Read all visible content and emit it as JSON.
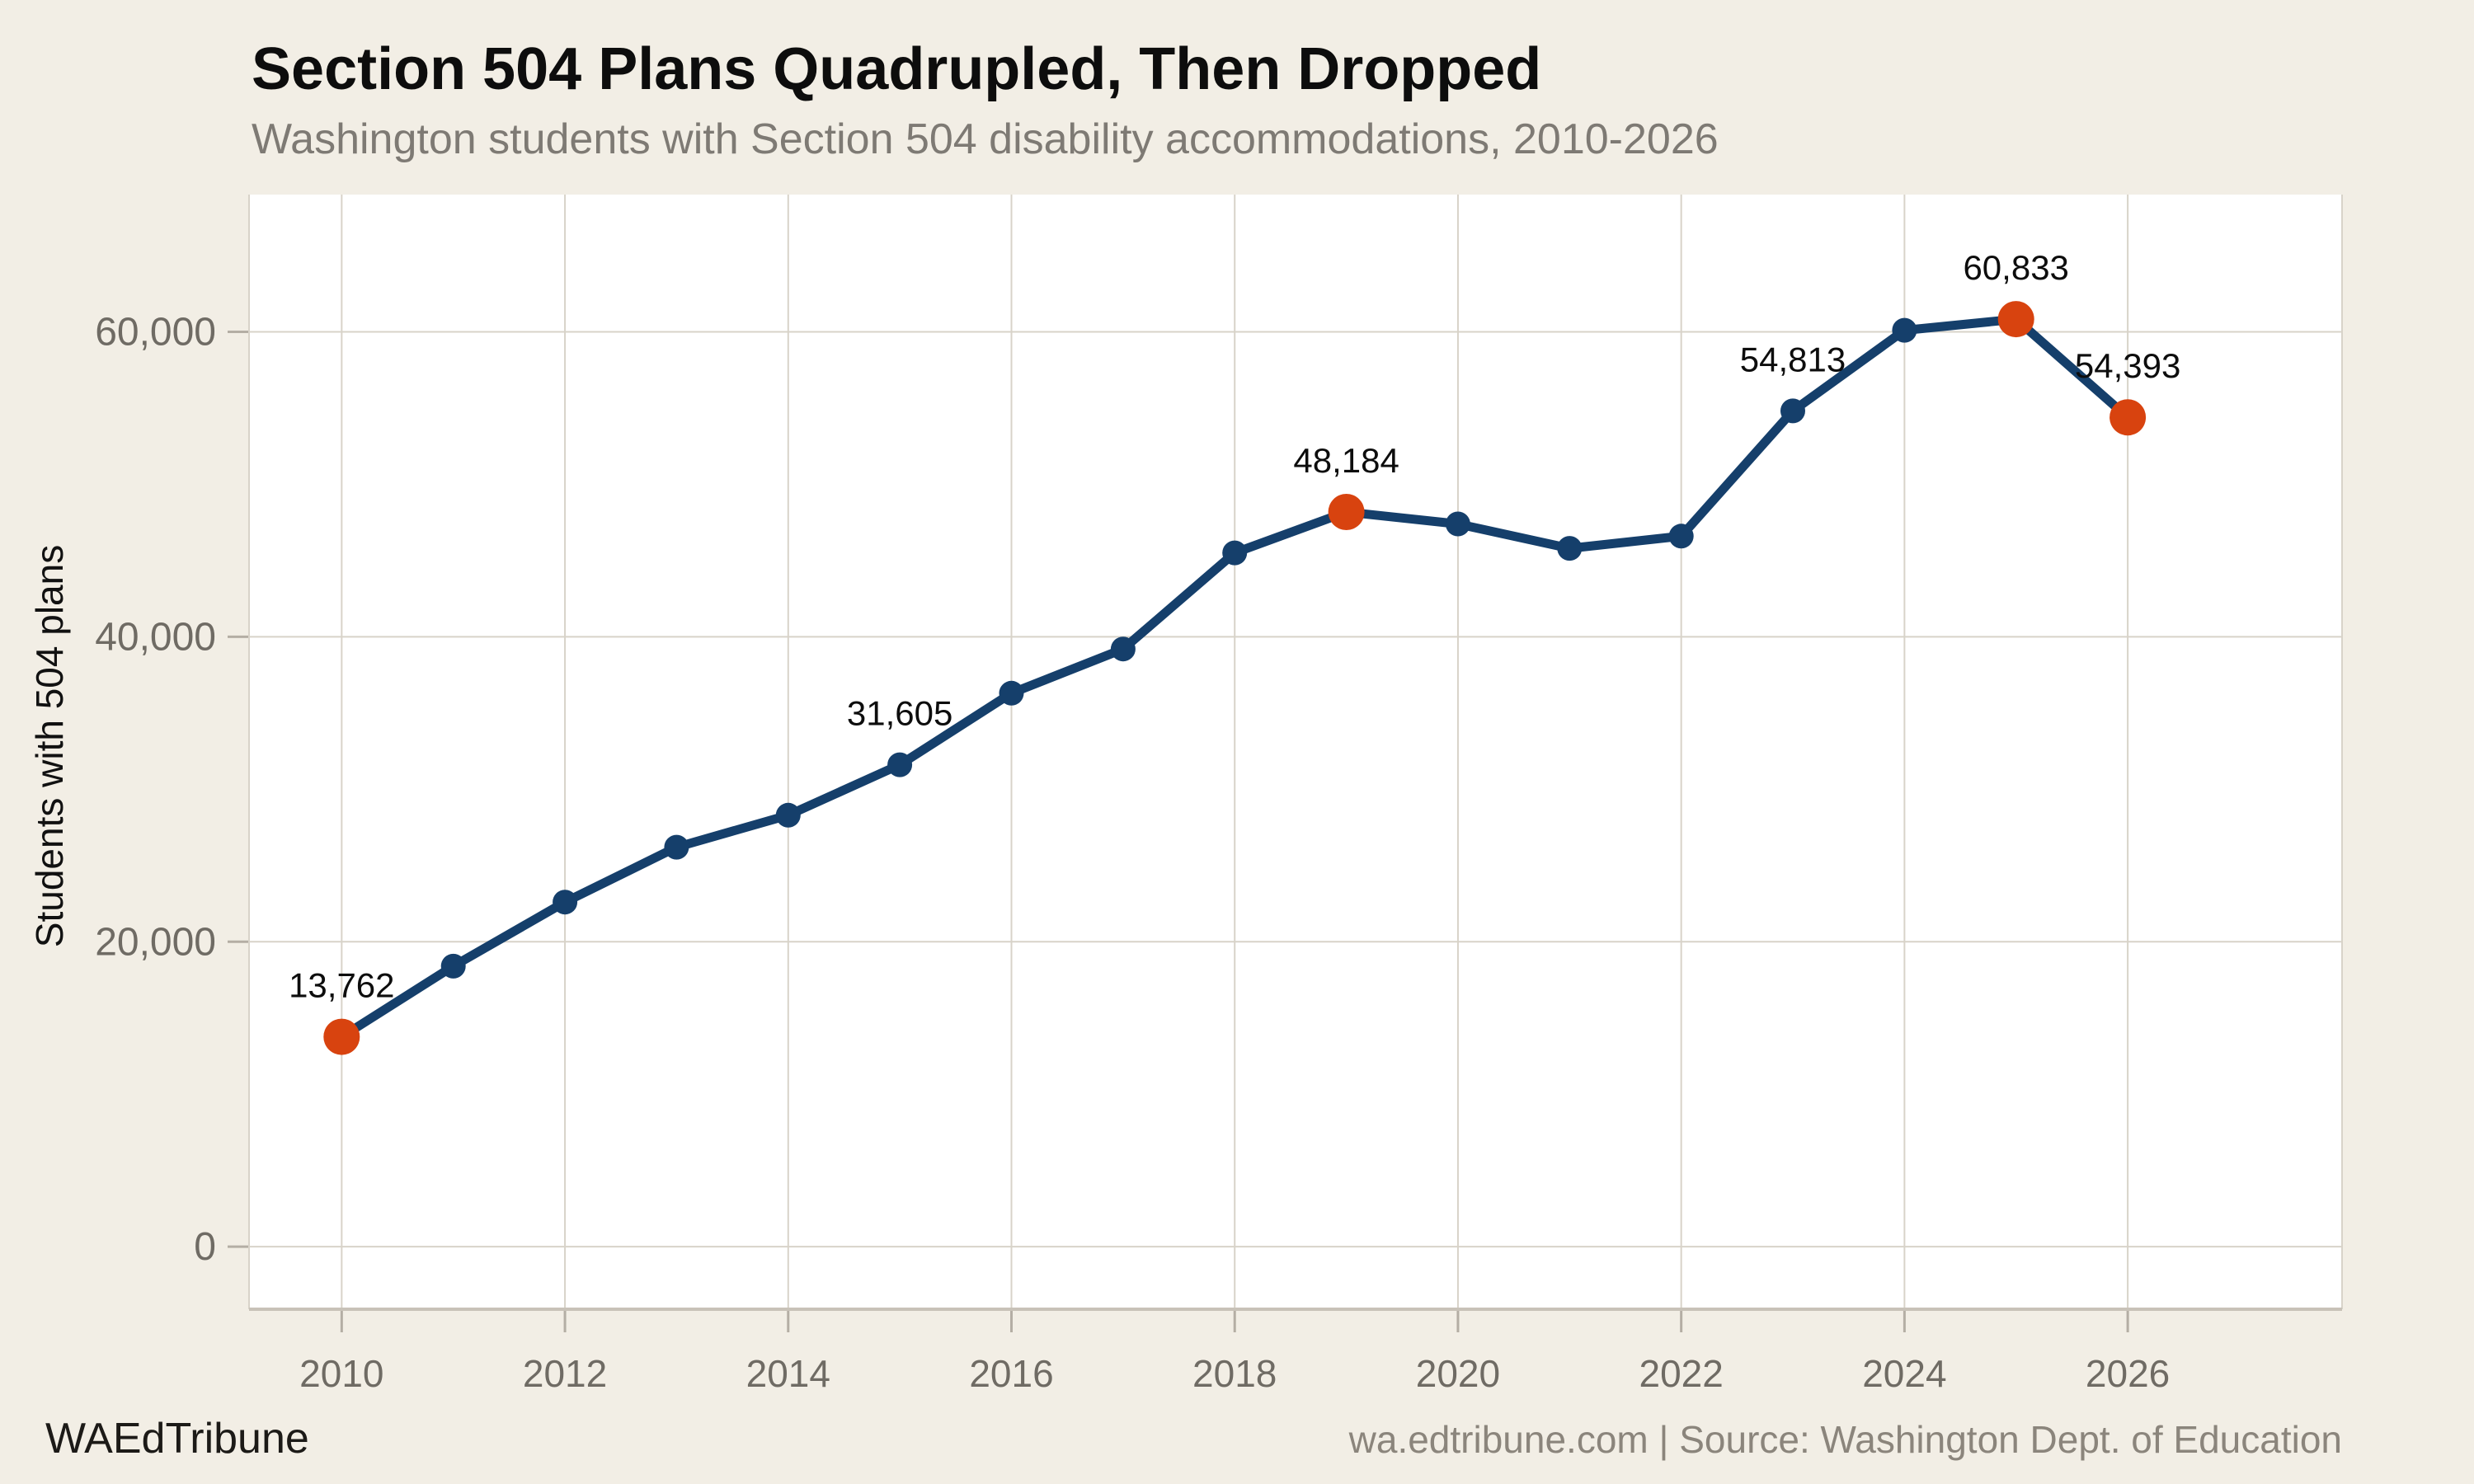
{
  "header": {
    "title": "Section 504 Plans Quadrupled, Then Dropped",
    "subtitle": "Washington students with Section 504 disability accommodations, 2010-2026"
  },
  "footer": {
    "brand": "WAEdTribune",
    "attribution": "wa.edtribune.com | Source: Washington Dept. of Education"
  },
  "colors": {
    "background": "#f2eee5",
    "plot_background": "#ffffff",
    "gridline": "#d8d3c9",
    "axis_line": "#c8c2b8",
    "tick_mark": "#b4aea4",
    "line": "#153f6b",
    "highlight_point": "#d8430f",
    "tick_label_text": "#6f6b64",
    "subtitle_text": "#7e7a74",
    "title_text": "#0d0d0d",
    "annotation_text": "#0d0d0d",
    "footer_brand_text": "#1c1a17",
    "footer_attribution_text": "#8b857c",
    "y_axis_title_text": "#111111"
  },
  "chart_data": {
    "type": "line",
    "title": "Section 504 Plans Quadrupled, Then Dropped",
    "subtitle": "Washington students with Section 504 disability accommodations, 2010-2026",
    "xlabel": "",
    "ylabel": "Students with 504 plans",
    "series_name": "Students with 504 plans",
    "x": [
      2010,
      2011,
      2012,
      2013,
      2014,
      2015,
      2016,
      2017,
      2018,
      2019,
      2020,
      2021,
      2022,
      2023,
      2024,
      2025,
      2026
    ],
    "values": [
      13762,
      18400,
      22600,
      26200,
      28300,
      31605,
      36300,
      39200,
      45500,
      48184,
      47400,
      45800,
      46600,
      54813,
      60100,
      60833,
      54393
    ],
    "xticks": [
      2010,
      2012,
      2014,
      2016,
      2018,
      2020,
      2022,
      2024,
      2026
    ],
    "yticks": [
      0,
      20000,
      40000,
      60000
    ],
    "ytick_labels": [
      "0",
      "20,000",
      "40,000",
      "60,000"
    ],
    "xlim": [
      2009.17,
      2027.92
    ],
    "ylim": [
      -4100,
      69000
    ],
    "grid": true,
    "legend": false,
    "annotations": [
      {
        "x": 2010,
        "y": 13762,
        "label": "13,762"
      },
      {
        "x": 2015,
        "y": 31605,
        "label": "31,605"
      },
      {
        "x": 2019,
        "y": 48184,
        "label": "48,184"
      },
      {
        "x": 2023,
        "y": 54813,
        "label": "54,813"
      },
      {
        "x": 2025,
        "y": 60833,
        "label": "60,833"
      },
      {
        "x": 2026,
        "y": 54393,
        "label": "54,393"
      }
    ],
    "highlighted_x": [
      2010,
      2019,
      2025,
      2026
    ]
  }
}
